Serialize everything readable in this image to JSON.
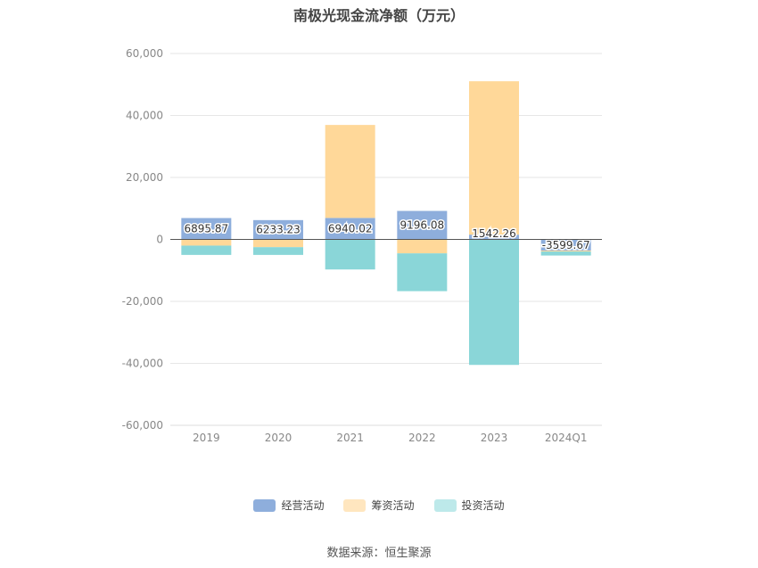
{
  "chart_data": {
    "type": "bar",
    "stacked": true,
    "title": "南极光现金流净额（万元）",
    "categories": [
      "2019",
      "2020",
      "2021",
      "2022",
      "2023",
      "2024Q1"
    ],
    "ylim": [
      -60000,
      60000
    ],
    "yticks": [
      60000,
      40000,
      20000,
      0,
      -20000,
      -40000,
      -60000
    ],
    "ytick_labels": [
      "60,000",
      "40,000",
      "20,000",
      "0",
      "-20,000",
      "-40,000",
      "-60,000"
    ],
    "grid": true,
    "legend_position": "bottom",
    "series": [
      {
        "name": "经营活动",
        "color": "#8eaedc",
        "values": [
          6895.87,
          6233.23,
          6940.02,
          9196.08,
          1542.26,
          -3599.67
        ],
        "labels": [
          "6895.87",
          "6233.23",
          "6940.02",
          "9196.08",
          "1542.26",
          "-3599.67"
        ]
      },
      {
        "name": "筹资活动",
        "color": "#ffd899",
        "values": [
          -2000,
          -2500,
          30000,
          -4500,
          49500,
          -300
        ]
      },
      {
        "name": "投资活动",
        "color": "#8ad6d8",
        "values": [
          -3000,
          -2500,
          -9700,
          -12200,
          -40500,
          -1300
        ]
      }
    ]
  },
  "legend": {
    "items": [
      {
        "label": "经营活动",
        "color": "#8eaedc"
      },
      {
        "label": "筹资活动",
        "color": "#ffe6bf"
      },
      {
        "label": "投资活动",
        "color": "#bde9ea"
      }
    ]
  },
  "source": "数据来源：恒生聚源"
}
